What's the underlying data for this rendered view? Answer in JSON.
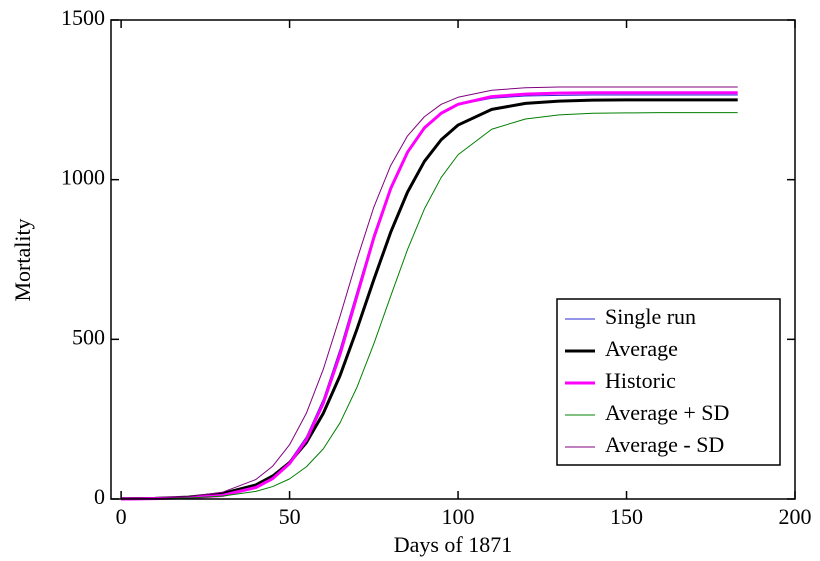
{
  "chart_data": {
    "type": "line",
    "x_label": "Days of 1871",
    "y_label": "Mortality",
    "x": [
      0,
      10,
      20,
      30,
      40,
      45,
      50,
      55,
      60,
      65,
      70,
      75,
      80,
      85,
      90,
      95,
      100,
      110,
      120,
      130,
      140,
      150,
      160,
      170,
      183
    ],
    "series": [
      {
        "name": "Single run",
        "color": "#2a2ad0",
        "width": 1,
        "values": [
          0,
          1,
          4,
          12,
          38,
          68,
          118,
          195,
          312,
          470,
          650,
          828,
          978,
          1090,
          1165,
          1210,
          1235,
          1255,
          1262,
          1264,
          1265,
          1265,
          1265,
          1265,
          1265
        ]
      },
      {
        "name": "Average",
        "color": "#000000",
        "width": 3,
        "values": [
          1,
          2,
          6,
          17,
          44,
          72,
          114,
          177,
          268,
          387,
          532,
          687,
          835,
          961,
          1057,
          1125,
          1171,
          1220,
          1239,
          1246,
          1249,
          1250,
          1250,
          1250,
          1250
        ]
      },
      {
        "name": "Historic",
        "color": "#ff00ff",
        "width": 3,
        "values": [
          0,
          1,
          4,
          11,
          36,
          64,
          111,
          186,
          300,
          454,
          636,
          818,
          972,
          1086,
          1162,
          1208,
          1236,
          1260,
          1268,
          1271,
          1272,
          1272,
          1272,
          1272,
          1272
        ]
      },
      {
        "name": "Average + SD",
        "color": "#008000",
        "width": 1,
        "values": [
          0,
          1,
          3,
          9,
          24,
          39,
          63,
          101,
          157,
          239,
          350,
          486,
          635,
          781,
          908,
          1007,
          1078,
          1158,
          1190,
          1203,
          1208,
          1209,
          1210,
          1210,
          1210
        ]
      },
      {
        "name": "Average - SD",
        "color": "#800080",
        "width": 1,
        "values": [
          1,
          2,
          7,
          21,
          61,
          103,
          170,
          269,
          406,
          573,
          750,
          914,
          1044,
          1137,
          1197,
          1236,
          1258,
          1280,
          1288,
          1290,
          1290,
          1290,
          1290,
          1290,
          1290
        ]
      }
    ],
    "xlim": [
      -3,
      200
    ],
    "ylim": [
      0,
      1500
    ],
    "xticks": [
      0,
      50,
      100,
      150,
      200
    ],
    "yticks": [
      0,
      500,
      1000,
      1500
    ],
    "legend": "lower-right"
  }
}
